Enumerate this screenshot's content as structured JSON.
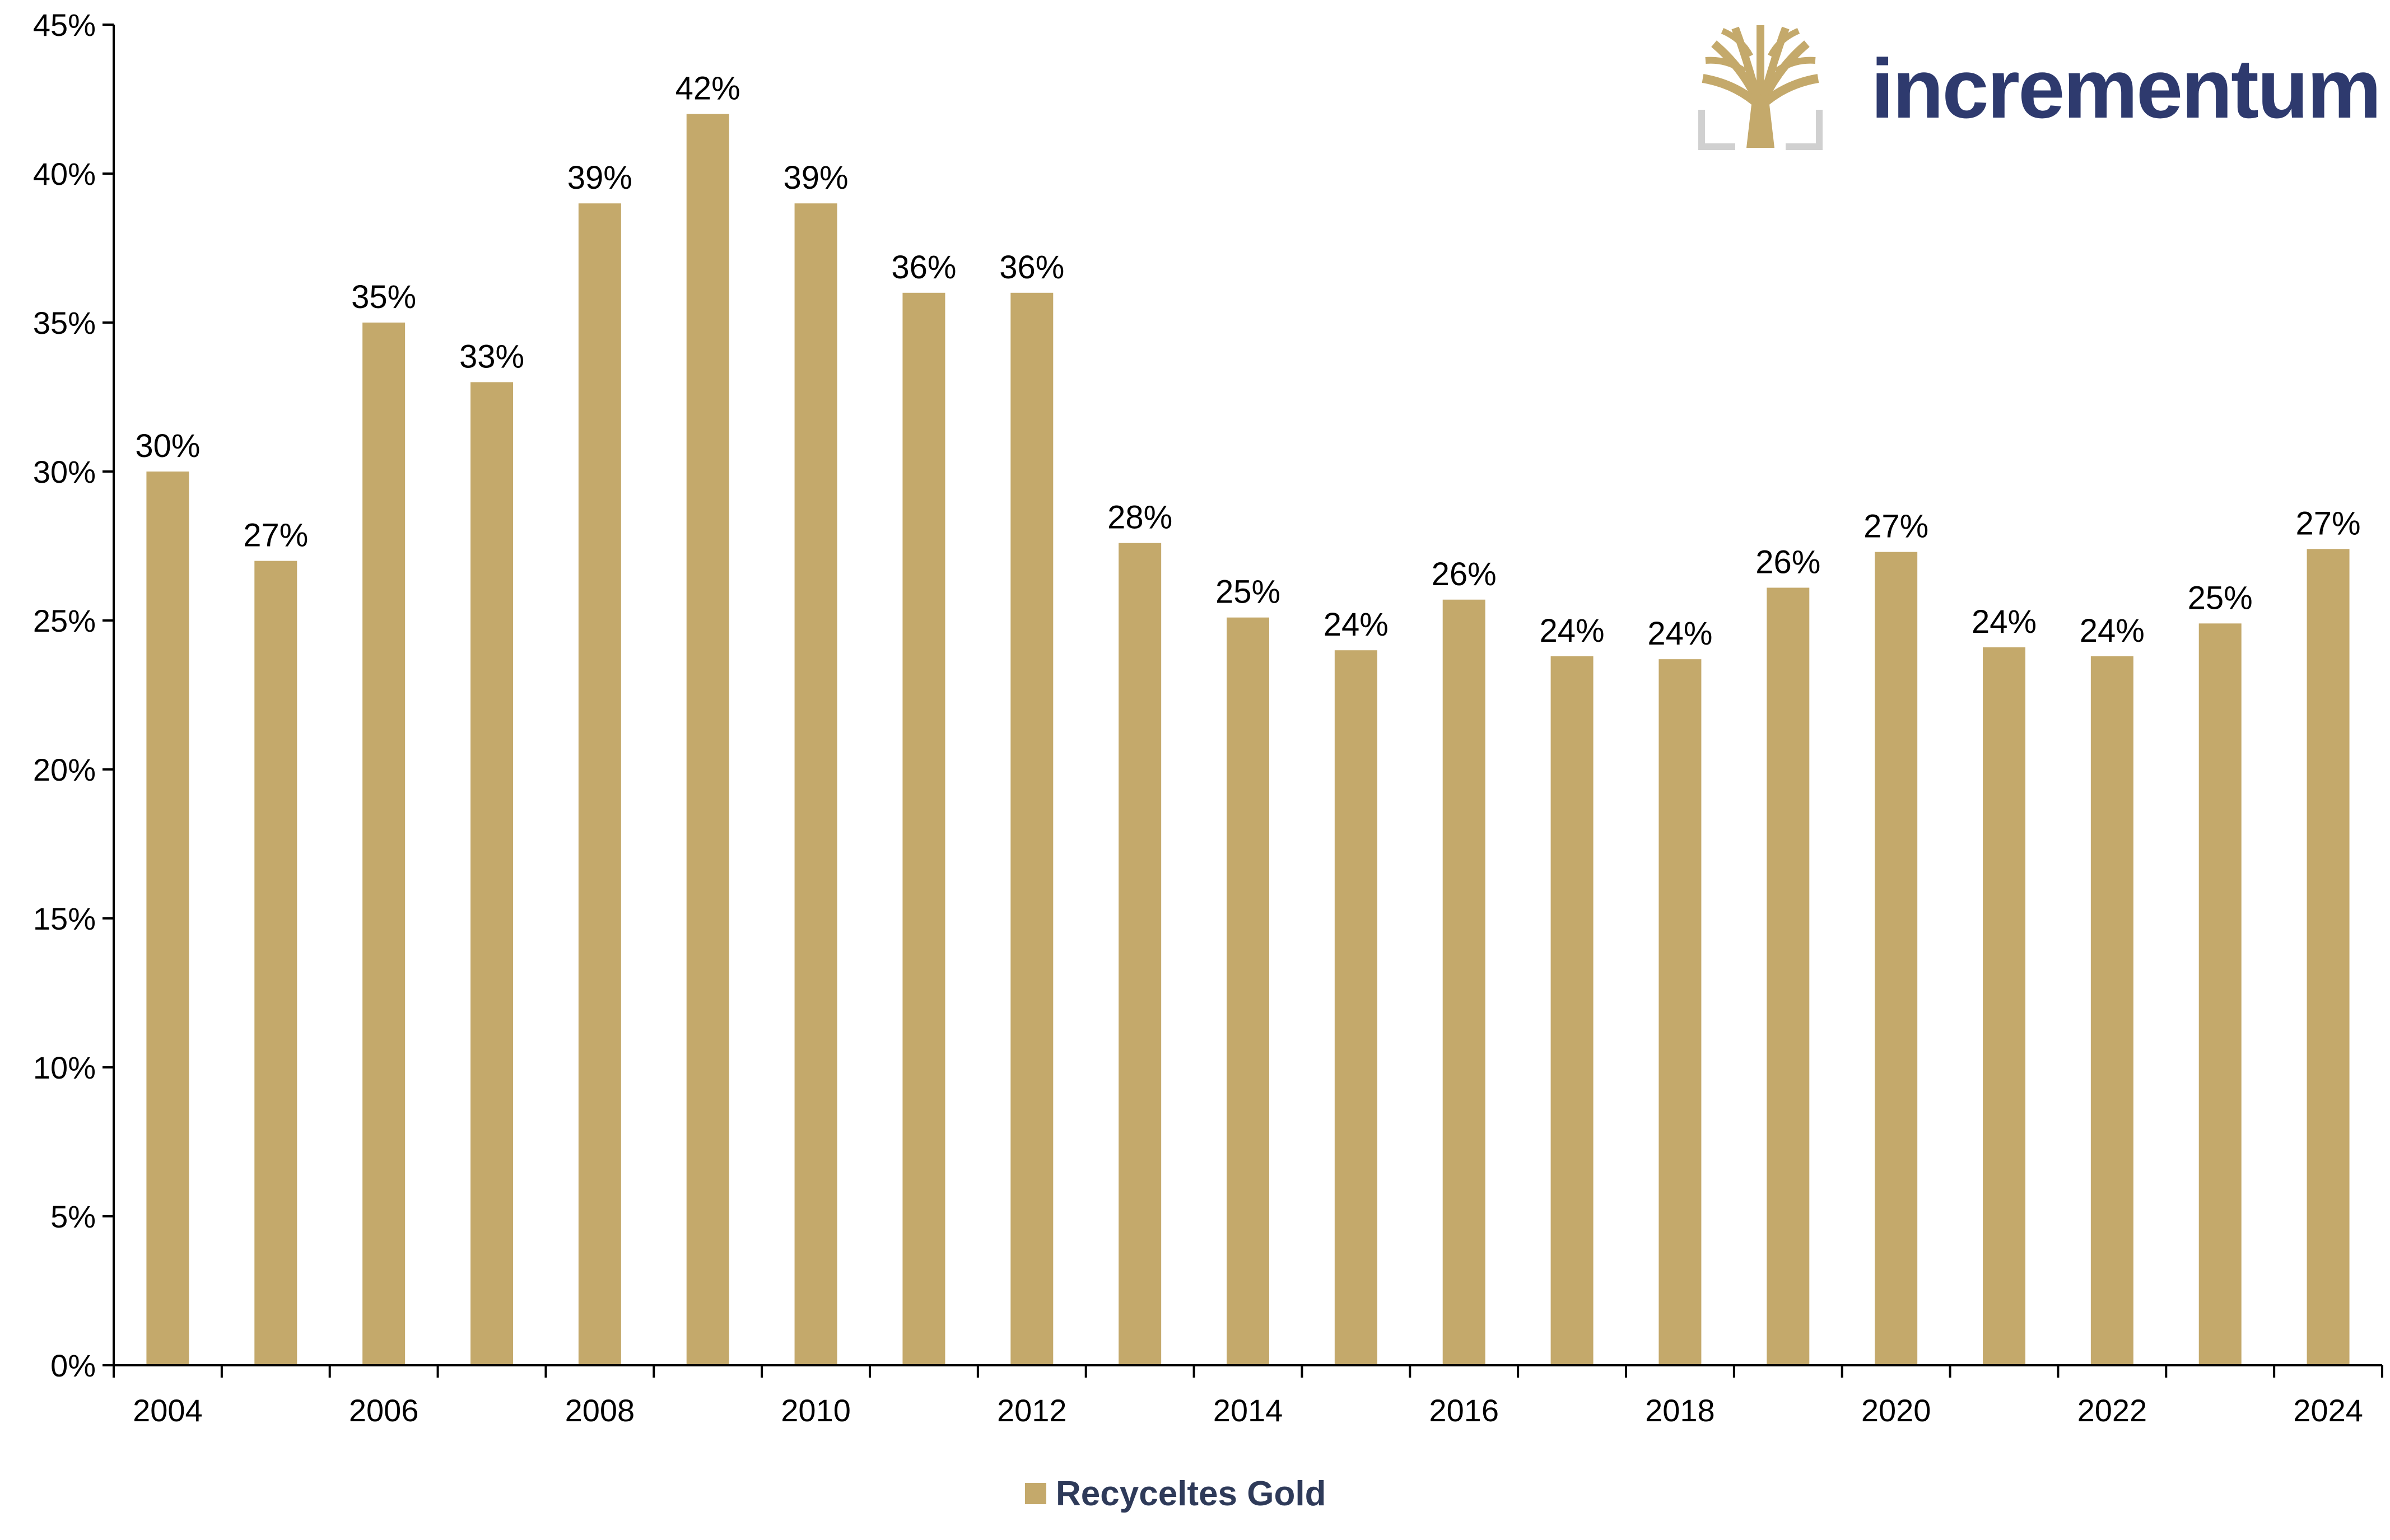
{
  "chart_data": {
    "type": "bar",
    "categories": [
      "2004",
      "2005",
      "2006",
      "2007",
      "2008",
      "2009",
      "2010",
      "2011",
      "2012",
      "2013",
      "2014",
      "2015",
      "2016",
      "2017",
      "2018",
      "2019",
      "2020",
      "2021",
      "2022",
      "2023",
      "2024"
    ],
    "x_tick_labels": [
      "2004",
      "",
      "2006",
      "",
      "2008",
      "",
      "2010",
      "",
      "2012",
      "",
      "2014",
      "",
      "2016",
      "",
      "2018",
      "",
      "2020",
      "",
      "2022",
      "",
      "2024"
    ],
    "series": [
      {
        "name": "Recyceltes Gold",
        "values": [
          0.3,
          0.27,
          0.35,
          0.33,
          0.39,
          0.42,
          0.39,
          0.36,
          0.36,
          0.276,
          0.251,
          0.24,
          0.257,
          0.238,
          0.237,
          0.261,
          0.273,
          0.241,
          0.238,
          0.249,
          0.274
        ],
        "data_labels": [
          "30%",
          "27%",
          "35%",
          "33%",
          "39%",
          "42%",
          "39%",
          "36%",
          "36%",
          "28%",
          "25%",
          "24%",
          "26%",
          "24%",
          "24%",
          "26%",
          "27%",
          "24%",
          "24%",
          "25%",
          "27%"
        ]
      }
    ],
    "y_ticks": [
      0,
      0.05,
      0.1,
      0.15,
      0.2,
      0.25,
      0.3,
      0.35,
      0.4,
      0.45
    ],
    "y_tick_labels": [
      "0%",
      "5%",
      "10%",
      "15%",
      "20%",
      "25%",
      "30%",
      "35%",
      "40%",
      "45%"
    ],
    "ylim": [
      0,
      0.45
    ],
    "title": "",
    "xlabel": "",
    "ylabel": "",
    "grid": false,
    "legend_position": "bottom-center",
    "colors": {
      "bar": "#c4a96b",
      "axis": "#000000",
      "legend_text": "#2e3a59"
    }
  },
  "logo": {
    "text": "incrementum",
    "icon": "tree-icon",
    "text_color": "#2e3a6e",
    "icon_color": "#c4a96b",
    "frame_color": "#d0d0d0"
  }
}
